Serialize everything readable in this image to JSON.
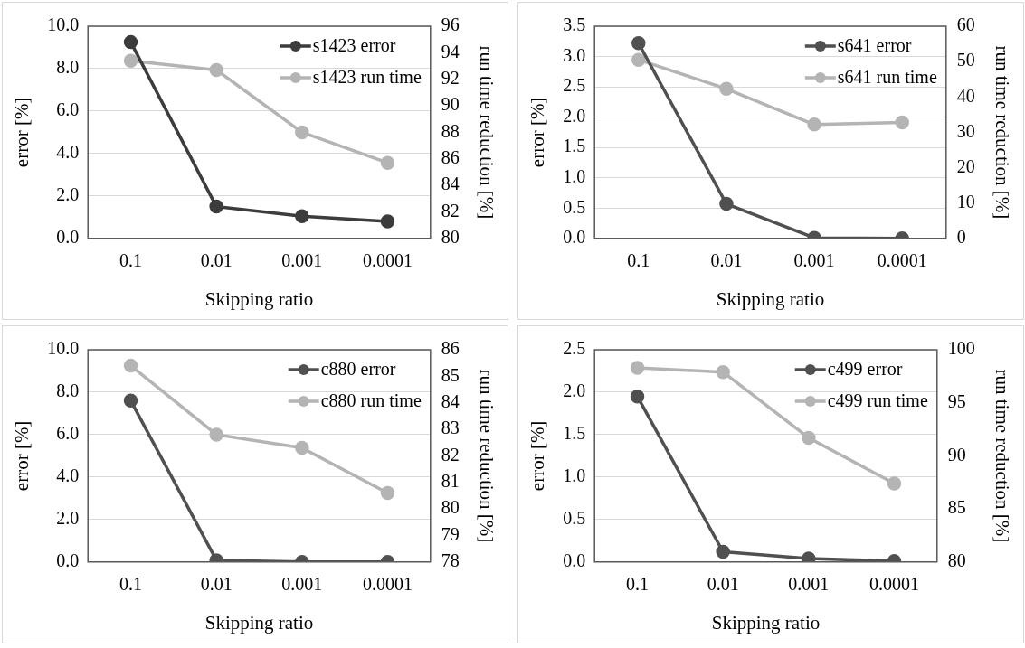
{
  "chart_data": [
    {
      "type": "line",
      "xlabel": "Skipping ratio",
      "ylabel": "error [%]",
      "y2label": "run time reduction [%]",
      "categories": [
        "0.1",
        "0.01",
        "0.001",
        "0.0001"
      ],
      "series": [
        {
          "name": "s1423 error",
          "color": "#3c3c3c",
          "values": [
            9.25,
            1.5,
            1.05,
            0.8
          ]
        },
        {
          "name": "s1423 run time",
          "color": "#b4b4b4",
          "axis": "y2",
          "values": [
            93.4,
            92.7,
            88.0,
            85.7
          ]
        }
      ],
      "ylim": [
        0,
        10
      ],
      "yticks": [
        {
          "value": 0,
          "label": "0.0"
        },
        {
          "value": 2,
          "label": "2.0"
        },
        {
          "value": 4,
          "label": "4.0"
        },
        {
          "value": 6,
          "label": "6.0"
        },
        {
          "value": 8,
          "label": "8.0"
        },
        {
          "value": 10,
          "label": "10.0"
        }
      ],
      "y2lim": [
        80,
        96
      ],
      "y2ticks": [
        80,
        82,
        84,
        86,
        88,
        90,
        92,
        94,
        96
      ],
      "grid": "y",
      "legend": "top right",
      "marker": "circle",
      "line_style": "solid"
    },
    {
      "type": "line",
      "xlabel": "Skipping ratio",
      "ylabel": "error [%]",
      "y2label": "run time reduction [%]",
      "categories": [
        "0.1",
        "0.01",
        "0.001",
        "0.0001"
      ],
      "series": [
        {
          "name": "s641 error",
          "color": "#505050",
          "values": [
            3.22,
            0.57,
            0.01,
            0.0
          ]
        },
        {
          "name": "s641 run time",
          "color": "#b4b4b4",
          "axis": "y2",
          "values": [
            50.5,
            42.3,
            32.2,
            32.8
          ]
        }
      ],
      "ylim": [
        0,
        3.5
      ],
      "yticks": [
        {
          "value": 0,
          "label": "0.0"
        },
        {
          "value": 0.5,
          "label": "0.5"
        },
        {
          "value": 1,
          "label": "1.0"
        },
        {
          "value": 1.5,
          "label": "1.5"
        },
        {
          "value": 2,
          "label": "2.0"
        },
        {
          "value": 2.5,
          "label": "2.5"
        },
        {
          "value": 3,
          "label": "3.0"
        },
        {
          "value": 3.5,
          "label": "3.5"
        }
      ],
      "y2lim": [
        0,
        60
      ],
      "y2ticks": [
        0,
        10,
        20,
        30,
        40,
        50,
        60
      ],
      "grid": "y",
      "legend": "top right",
      "marker": "circle",
      "line_style": "solid"
    },
    {
      "type": "line",
      "xlabel": "Skipping ratio",
      "ylabel": "error [%]",
      "y2label": "run time reduction [%]",
      "categories": [
        "0.1",
        "0.01",
        "0.001",
        "0.0001"
      ],
      "series": [
        {
          "name": "c880 error",
          "color": "#505050",
          "values": [
            7.6,
            0.08,
            0.0,
            0.0
          ]
        },
        {
          "name": "c880 run time",
          "color": "#b4b4b4",
          "axis": "y2",
          "values": [
            85.4,
            82.8,
            82.3,
            80.6
          ]
        }
      ],
      "ylim": [
        0,
        10
      ],
      "yticks": [
        {
          "value": 0,
          "label": "0.0"
        },
        {
          "value": 2,
          "label": "2.0"
        },
        {
          "value": 4,
          "label": "4.0"
        },
        {
          "value": 6,
          "label": "6.0"
        },
        {
          "value": 8,
          "label": "8.0"
        },
        {
          "value": 10,
          "label": "10.0"
        }
      ],
      "y2lim": [
        78,
        86
      ],
      "y2ticks": [
        78,
        79,
        80,
        81,
        82,
        83,
        84,
        85,
        86
      ],
      "grid": "y",
      "legend": "top right",
      "marker": "circle",
      "line_style": "solid"
    },
    {
      "type": "line",
      "xlabel": "Skipping ratio",
      "ylabel": "error [%]",
      "y2label": "run time reduction [%]",
      "categories": [
        "0.1",
        "0.01",
        "0.001",
        "0.0001"
      ],
      "series": [
        {
          "name": "c499 error",
          "color": "#505050",
          "values": [
            1.95,
            0.12,
            0.04,
            0.01
          ]
        },
        {
          "name": "c499 run time",
          "color": "#b4b4b4",
          "axis": "y2",
          "values": [
            98.3,
            97.9,
            91.7,
            87.4
          ]
        }
      ],
      "ylim": [
        0,
        2.5
      ],
      "yticks": [
        {
          "value": 0,
          "label": "0.0"
        },
        {
          "value": 0.5,
          "label": "0.5"
        },
        {
          "value": 1,
          "label": "1.0"
        },
        {
          "value": 1.5,
          "label": "1.5"
        },
        {
          "value": 2,
          "label": "2.0"
        },
        {
          "value": 2.5,
          "label": "2.5"
        }
      ],
      "y2lim": [
        80,
        100
      ],
      "y2ticks": [
        80,
        85,
        90,
        95,
        100
      ],
      "grid": "y",
      "legend": "top right",
      "marker": "circle",
      "line_style": "solid"
    }
  ]
}
